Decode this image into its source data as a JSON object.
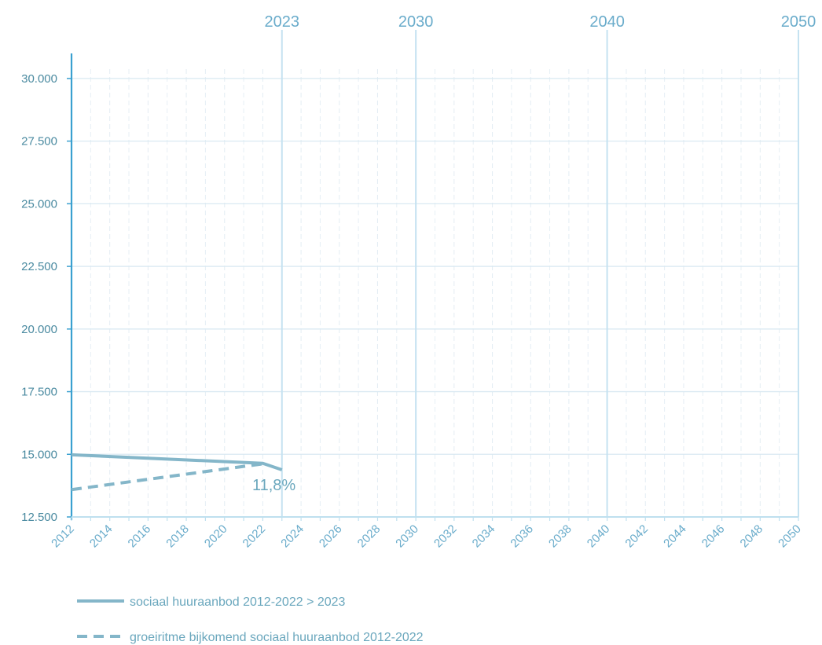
{
  "chart_data": {
    "type": "line",
    "x_range": [
      2012,
      2050
    ],
    "ylim": [
      12500,
      31000
    ],
    "yticks": [
      12500,
      15000,
      17500,
      20000,
      22500,
      25000,
      27500,
      30000
    ],
    "ytick_labels": [
      "12.500",
      "15.000",
      "17.500",
      "20.000",
      "22.500",
      "25.000",
      "27.500",
      "30.000"
    ],
    "xticks": [
      2012,
      2014,
      2016,
      2018,
      2020,
      2022,
      2024,
      2026,
      2028,
      2030,
      2032,
      2034,
      2036,
      2038,
      2040,
      2042,
      2044,
      2046,
      2048,
      2050
    ],
    "xtick_labels": [
      "2012",
      "2014",
      "2016",
      "2018",
      "2020",
      "2022",
      "2024",
      "2026",
      "2028",
      "2030",
      "2032",
      "2034",
      "2036",
      "2038",
      "2040",
      "2042",
      "2044",
      "2046",
      "2048",
      "2050"
    ],
    "vertical_markers": [
      {
        "x": 2023,
        "label": "2023"
      },
      {
        "x": 2030,
        "label": "2030"
      },
      {
        "x": 2040,
        "label": "2040"
      },
      {
        "x": 2050,
        "label": "2050"
      }
    ],
    "grid": true,
    "series": [
      {
        "name": "sociaal huuraanbod 2012-2022 > 2023",
        "style": "solid",
        "color": "#84b6c9",
        "points": [
          [
            2012,
            14980
          ],
          [
            2022,
            14640
          ],
          [
            2023,
            14380
          ]
        ]
      },
      {
        "name": "groeiritme bijkomend sociaal huuraanbod 2012-2022",
        "style": "dashed",
        "color": "#84b6c9",
        "points": [
          [
            2012,
            13590
          ],
          [
            2022,
            14620
          ]
        ]
      }
    ],
    "annotations": [
      {
        "text": "11,8%",
        "x": 2022.5,
        "y": 13630
      }
    ],
    "legend_position": "bottom-left"
  }
}
